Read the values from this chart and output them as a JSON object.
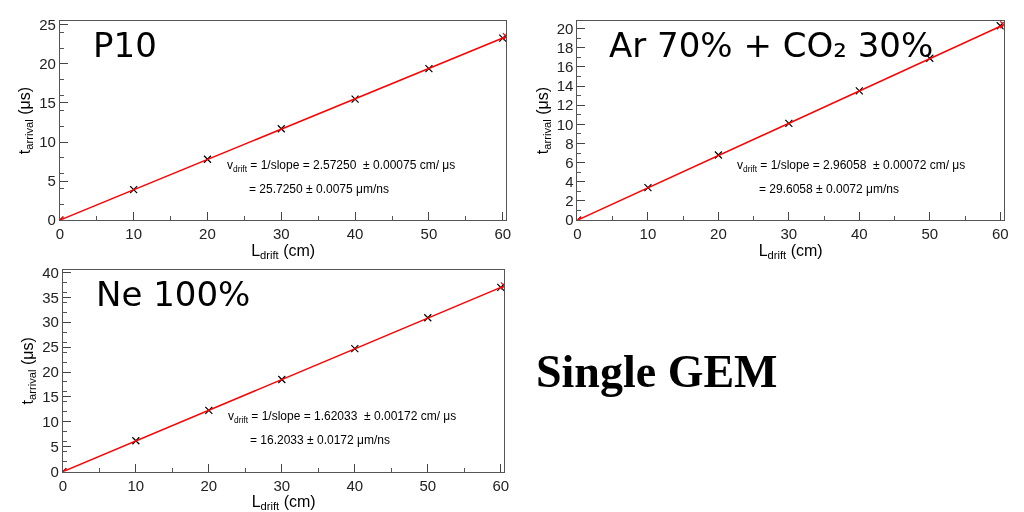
{
  "chart_data": [
    {
      "type": "scatter",
      "title": "P10",
      "xlabel": "L$_{drift}$ (cm)",
      "ylabel": "t$_{arrival}$ (μs)",
      "xlim": [
        0,
        60.5
      ],
      "ylim": [
        0,
        25.5
      ],
      "xticks": [
        0,
        10,
        20,
        30,
        40,
        50,
        60
      ],
      "yticks": [
        0,
        5,
        10,
        15,
        20,
        25
      ],
      "marker": "cross",
      "annotations": [
        "v$_{drift}$ = 1/slope = 2.57250  ± 0.00075 cm/ μs",
        "= 25.7250 ± 0.0075 μm/ns"
      ],
      "series": [
        {
          "color": "#000000",
          "x": [
            0,
            10,
            20,
            30,
            40,
            50,
            60
          ],
          "values": [
            0,
            3.9,
            7.8,
            11.7,
            15.5,
            19.4,
            23.3
          ]
        },
        {
          "type": "line",
          "color": "#ff0000",
          "x": [
            0,
            60.5
          ],
          "values": [
            0,
            23.5
          ]
        }
      ]
    },
    {
      "type": "scatter",
      "title": "Ar 70% + CO₂ 30%",
      "xlabel": "L$_{drift}$ (cm)",
      "ylabel": "t$_{arrival}$ (μs)",
      "xlim": [
        0,
        60.5
      ],
      "ylim": [
        0,
        20.8
      ],
      "xticks": [
        0,
        10,
        20,
        30,
        40,
        50,
        60
      ],
      "yticks": [
        0,
        2,
        4,
        6,
        8,
        10,
        12,
        14,
        16,
        18,
        20
      ],
      "marker": "cross",
      "annotations": [
        "v$_{drift}$ = 1/slope = 2.96058  ± 0.00072 cm/ μs",
        "= 29.6058 ± 0.0072 μm/ns"
      ],
      "series": [
        {
          "color": "#000000",
          "x": [
            0,
            10,
            20,
            30,
            40,
            50,
            60
          ],
          "values": [
            0,
            3.4,
            6.8,
            10.1,
            13.5,
            16.9,
            20.3
          ]
        },
        {
          "type": "line",
          "color": "#ff0000",
          "x": [
            0,
            60.5
          ],
          "values": [
            0,
            20.4
          ]
        }
      ]
    },
    {
      "type": "scatter",
      "title": "Ne 100%",
      "xlabel": "L$_{drift}$ (cm)",
      "ylabel": "t$_{arrival}$ (μs)",
      "xlim": [
        0,
        60.5
      ],
      "ylim": [
        0,
        40.5
      ],
      "xticks": [
        0,
        10,
        20,
        30,
        40,
        50,
        60
      ],
      "yticks": [
        0,
        5,
        10,
        15,
        20,
        25,
        30,
        35,
        40
      ],
      "marker": "cross",
      "annotations": [
        "v$_{drift}$ = 1/slope = 1.62033  ± 0.00172 cm/ μs",
        "= 16.2033 ± 0.0172 μm/ns"
      ],
      "series": [
        {
          "color": "#000000",
          "x": [
            0,
            10,
            20,
            30,
            40,
            50,
            60
          ],
          "values": [
            0,
            6.2,
            12.3,
            18.5,
            24.7,
            30.9,
            37.0
          ]
        },
        {
          "type": "line",
          "color": "#ff0000",
          "x": [
            0,
            60.5
          ],
          "values": [
            0,
            37.3
          ]
        }
      ]
    },
    {
      "type": "other",
      "title": "Single GEM"
    }
  ]
}
